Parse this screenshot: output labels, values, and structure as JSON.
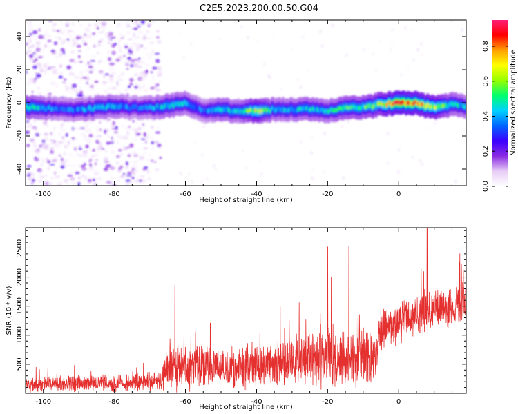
{
  "title": "C2E5.2023.200.00.50.G04",
  "chart_data": [
    {
      "type": "heatmap",
      "xlabel": "Height of straight line (km)",
      "ylabel": "Frequency (Hz)",
      "xlim": [
        -105,
        19
      ],
      "ylim": [
        -50,
        50
      ],
      "xticks": [
        -100,
        -80,
        -60,
        -40,
        -20,
        0
      ],
      "yticks": [
        -40,
        -20,
        0,
        20,
        40
      ],
      "colorbar": {
        "label": "Normalized spectral amplitude",
        "range": [
          0.0,
          0.95
        ],
        "ticks": [
          "0.0",
          "0.2",
          "0.4",
          "0.6",
          "0.8"
        ],
        "colors": [
          "#ffffff",
          "#e7ccf6",
          "#8a2be2",
          "#3b00ff",
          "#0064ff",
          "#00d2ff",
          "#00ff6e",
          "#96ff00",
          "#ffff00",
          "#ffa000",
          "#ff0000",
          "#ff1e78"
        ]
      },
      "signal_track": {
        "x": [
          -105,
          -100,
          -95,
          -90,
          -85,
          -80,
          -75,
          -70,
          -65,
          -60,
          -55,
          -50,
          -45,
          -40,
          -35,
          -30,
          -25,
          -20,
          -15,
          -10,
          -5,
          0,
          5,
          10,
          15,
          19
        ],
        "frequency": [
          -3,
          -3,
          -4,
          -4,
          -3,
          -2,
          -3,
          -3,
          -2,
          0,
          -5,
          -4,
          -5,
          -5,
          -4,
          -4,
          -4,
          -5,
          -3,
          -3,
          -1,
          0,
          0,
          -3,
          -1,
          -2
        ],
        "amplitude": [
          0.55,
          0.45,
          0.35,
          0.4,
          0.45,
          0.45,
          0.35,
          0.4,
          0.5,
          0.45,
          0.35,
          0.5,
          0.45,
          0.7,
          0.45,
          0.45,
          0.5,
          0.45,
          0.55,
          0.55,
          0.65,
          0.9,
          0.8,
          0.7,
          0.5,
          0.45
        ]
      },
      "grid": false
    },
    {
      "type": "line",
      "xlabel": "Height of straight line (km)",
      "ylabel": "SNR (10 * v/v)",
      "xlim": [
        -105,
        19
      ],
      "ylim": [
        0,
        2850
      ],
      "xticks": [
        -100,
        -80,
        -60,
        -40,
        -20,
        0
      ],
      "yticks": [
        500,
        1000,
        1500,
        2000,
        2500
      ],
      "color": "#e53030",
      "envelope": {
        "x": [
          -105,
          -95,
          -85,
          -75,
          -67,
          -65,
          -60,
          -55,
          -50,
          -45,
          -40,
          -35,
          -30,
          -25,
          -20,
          -15,
          -10,
          -6,
          -5,
          0,
          5,
          8,
          10,
          15,
          19
        ],
        "baseline": [
          150,
          160,
          170,
          180,
          220,
          500,
          450,
          500,
          420,
          450,
          470,
          430,
          560,
          600,
          620,
          520,
          650,
          640,
          1100,
          1200,
          1350,
          1400,
          1450,
          1500,
          1600
        ],
        "spread": [
          150,
          160,
          150,
          170,
          180,
          550,
          450,
          400,
          380,
          450,
          450,
          400,
          500,
          600,
          650,
          500,
          550,
          500,
          450,
          400,
          400,
          450,
          420,
          400,
          400
        ]
      },
      "spikes": [
        {
          "x": -63,
          "y": 1860
        },
        {
          "x": -53,
          "y": 1210
        },
        {
          "x": -32,
          "y": 1510
        },
        {
          "x": -28,
          "y": 1560
        },
        {
          "x": -20,
          "y": 2520
        },
        {
          "x": -19,
          "y": 2000
        },
        {
          "x": -14,
          "y": 2530
        },
        {
          "x": -12,
          "y": 1620
        },
        {
          "x": 8,
          "y": 2840
        },
        {
          "x": 17,
          "y": 2320
        }
      ],
      "grid": false
    }
  ]
}
